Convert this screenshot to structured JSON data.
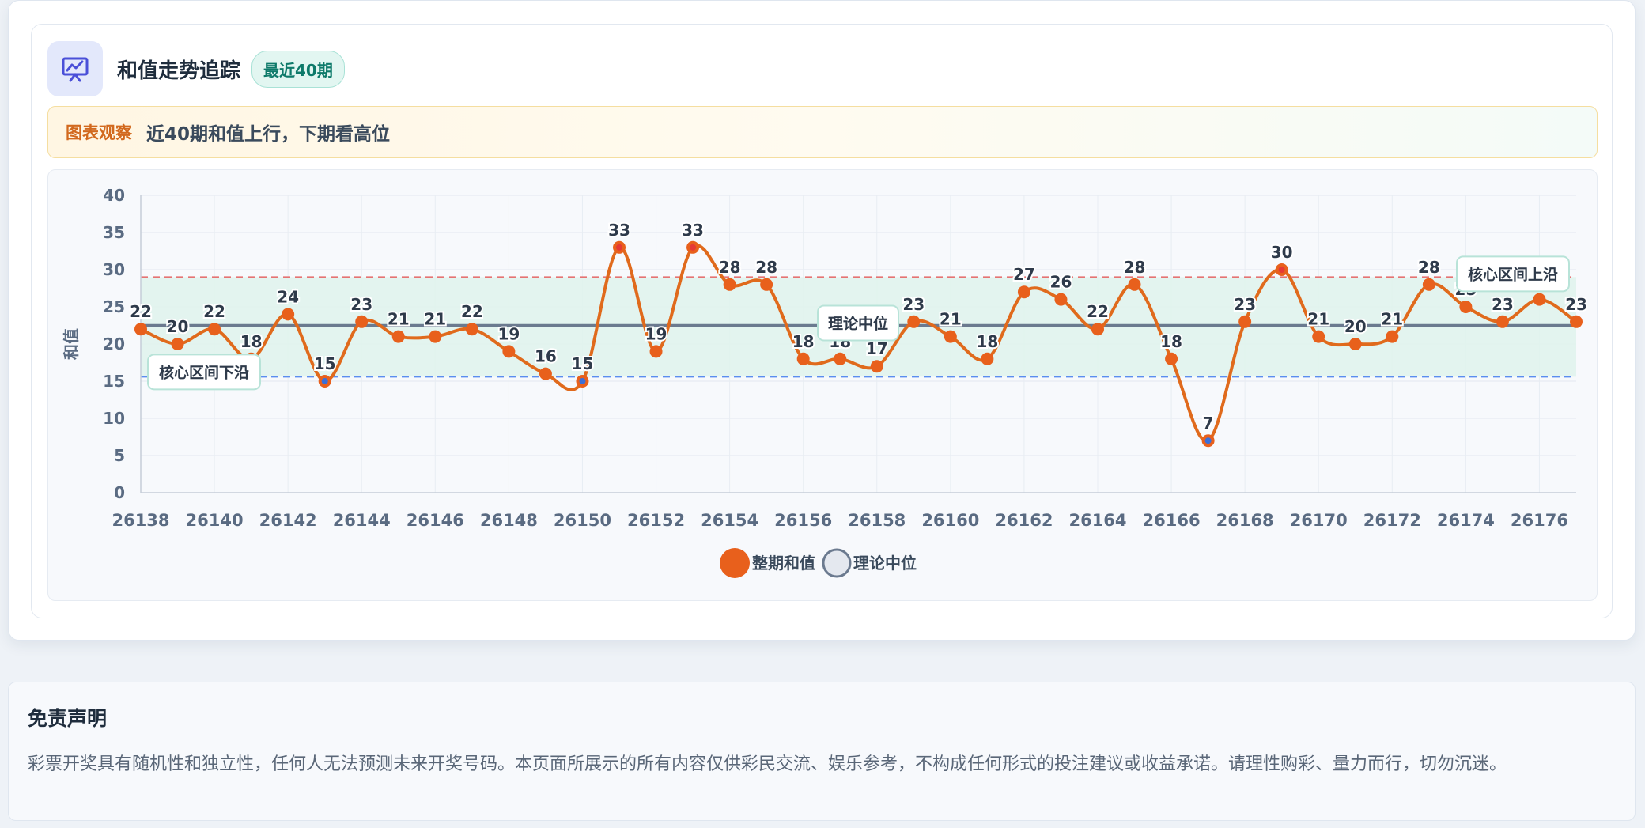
{
  "header": {
    "icon": "presentation-chart-icon",
    "title": "和值走势追踪",
    "badge": "最近40期"
  },
  "insight": {
    "label": "图表观察",
    "text": "近40期和值上行，下期看高位"
  },
  "disclaimer": {
    "title": "免责声明",
    "text": "彩票开奖具有随机性和独立性，任何人无法预测未来开奖号码。本页面所展示的所有内容仅供彩民交流、娱乐参考，不构成任何形式的投注建议或收益承诺。请理性购彩、量力而行，切勿沉迷。"
  },
  "colors": {
    "series": "#e06a1c",
    "point": "#e8601c",
    "high_marker": "#e53935",
    "low_marker": "#3b6fd8",
    "median_line": "#6b7a8f",
    "upper_band": "#e57373",
    "lower_band": "#5b8def",
    "band_fill": "#dff3ec"
  },
  "chart_data": {
    "type": "line",
    "xlabel": "",
    "ylabel": "和值",
    "ylim": [
      0,
      40
    ],
    "yticks": [
      0,
      5,
      10,
      15,
      20,
      25,
      30,
      35,
      40
    ],
    "x": [
      26138,
      26139,
      26140,
      26141,
      26142,
      26143,
      26144,
      26145,
      26146,
      26147,
      26148,
      26149,
      26150,
      26151,
      26152,
      26153,
      26154,
      26155,
      26156,
      26157,
      26158,
      26159,
      26160,
      26161,
      26162,
      26163,
      26164,
      26165,
      26166,
      26167,
      26168,
      26169,
      26170,
      26171,
      26172,
      26173,
      26174,
      26175,
      26176,
      26177
    ],
    "xticks": [
      "26138",
      "26140",
      "26142",
      "26144",
      "26146",
      "26148",
      "26150",
      "26152",
      "26154",
      "26156",
      "26158",
      "26160",
      "26162",
      "26164",
      "26166",
      "26168",
      "26170",
      "26172",
      "26174",
      "26176"
    ],
    "series": [
      {
        "name": "整期和值",
        "values": [
          22,
          20,
          22,
          18,
          24,
          15,
          23,
          21,
          21,
          22,
          19,
          16,
          15,
          33,
          19,
          33,
          28,
          28,
          18,
          18,
          17,
          23,
          21,
          18,
          27,
          26,
          22,
          28,
          18,
          7,
          23,
          30,
          21,
          20,
          21,
          28,
          25,
          23,
          26,
          23
        ]
      },
      {
        "name": "理论中位",
        "values": [
          22.5,
          22.5,
          22.5,
          22.5,
          22.5,
          22.5,
          22.5,
          22.5,
          22.5,
          22.5,
          22.5,
          22.5,
          22.5,
          22.5,
          22.5,
          22.5,
          22.5,
          22.5,
          22.5,
          22.5,
          22.5,
          22.5,
          22.5,
          22.5,
          22.5,
          22.5,
          22.5,
          22.5,
          22.5,
          22.5,
          22.5,
          22.5,
          22.5,
          22.5,
          22.5,
          22.5,
          22.5,
          22.5,
          22.5,
          22.5
        ]
      }
    ],
    "reference_lines": [
      {
        "label": "核心区间上沿",
        "value": 29
      },
      {
        "label": "理论中位",
        "value": 22.5
      },
      {
        "label": "核心区间下沿",
        "value": 15.6
      }
    ],
    "grid": true,
    "legend": "bottom-center"
  }
}
